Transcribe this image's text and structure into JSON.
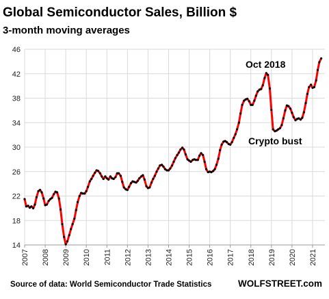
{
  "chart_data": {
    "type": "line",
    "title": "Global Semiconductor Sales, Billion $",
    "subtitle": "3-month moving averages",
    "ylim": [
      14,
      46
    ],
    "yticks": [
      14,
      18,
      22,
      26,
      30,
      34,
      38,
      42,
      46
    ],
    "xlim": [
      2007,
      2021.6
    ],
    "xticks": [
      "2007",
      "2008",
      "2009",
      "2010",
      "2011",
      "2012",
      "2013",
      "2014",
      "2015",
      "2016",
      "2017",
      "2018",
      "2019",
      "2020",
      "2021"
    ],
    "grid": true,
    "colors": {
      "line": "#ff0000",
      "markers": "#000000",
      "grid": "#d9d9d9"
    },
    "series": [
      {
        "points": [
          [
            2007.0,
            21.5
          ],
          [
            2007.08,
            20.3
          ],
          [
            2007.17,
            20.4
          ],
          [
            2007.25,
            20.1
          ],
          [
            2007.33,
            20.3
          ],
          [
            2007.42,
            20.0
          ],
          [
            2007.5,
            20.6
          ],
          [
            2007.58,
            21.8
          ],
          [
            2007.67,
            22.8
          ],
          [
            2007.75,
            23.0
          ],
          [
            2007.83,
            22.6
          ],
          [
            2007.92,
            21.6
          ],
          [
            2008.0,
            20.5
          ],
          [
            2008.08,
            20.6
          ],
          [
            2008.17,
            21.2
          ],
          [
            2008.25,
            21.5
          ],
          [
            2008.33,
            21.7
          ],
          [
            2008.42,
            22.3
          ],
          [
            2008.5,
            22.7
          ],
          [
            2008.58,
            22.6
          ],
          [
            2008.67,
            21.6
          ],
          [
            2008.75,
            19.8
          ],
          [
            2008.83,
            17.4
          ],
          [
            2008.92,
            15.3
          ],
          [
            2009.0,
            14.1
          ],
          [
            2009.08,
            14.6
          ],
          [
            2009.17,
            15.6
          ],
          [
            2009.25,
            16.6
          ],
          [
            2009.33,
            17.4
          ],
          [
            2009.42,
            18.3
          ],
          [
            2009.5,
            19.7
          ],
          [
            2009.58,
            21.0
          ],
          [
            2009.67,
            22.0
          ],
          [
            2009.75,
            22.5
          ],
          [
            2009.83,
            22.4
          ],
          [
            2009.92,
            22.4
          ],
          [
            2010.0,
            22.8
          ],
          [
            2010.08,
            23.5
          ],
          [
            2010.17,
            24.4
          ],
          [
            2010.25,
            24.8
          ],
          [
            2010.33,
            25.3
          ],
          [
            2010.42,
            25.8
          ],
          [
            2010.5,
            26.2
          ],
          [
            2010.58,
            26.1
          ],
          [
            2010.67,
            25.7
          ],
          [
            2010.75,
            25.2
          ],
          [
            2010.83,
            24.8
          ],
          [
            2010.92,
            25.2
          ],
          [
            2011.0,
            24.9
          ],
          [
            2011.08,
            24.7
          ],
          [
            2011.17,
            25.2
          ],
          [
            2011.25,
            24.9
          ],
          [
            2011.33,
            24.8
          ],
          [
            2011.42,
            25.1
          ],
          [
            2011.5,
            25.7
          ],
          [
            2011.58,
            25.7
          ],
          [
            2011.67,
            25.3
          ],
          [
            2011.75,
            24.3
          ],
          [
            2011.83,
            23.4
          ],
          [
            2011.92,
            23.1
          ],
          [
            2012.0,
            23.0
          ],
          [
            2012.08,
            23.5
          ],
          [
            2012.17,
            24.1
          ],
          [
            2012.25,
            24.4
          ],
          [
            2012.33,
            24.3
          ],
          [
            2012.42,
            24.2
          ],
          [
            2012.5,
            24.5
          ],
          [
            2012.58,
            24.9
          ],
          [
            2012.67,
            25.2
          ],
          [
            2012.75,
            25.4
          ],
          [
            2012.83,
            24.7
          ],
          [
            2012.92,
            23.6
          ],
          [
            2013.0,
            23.3
          ],
          [
            2013.08,
            23.4
          ],
          [
            2013.17,
            24.2
          ],
          [
            2013.25,
            24.8
          ],
          [
            2013.33,
            25.3
          ],
          [
            2013.42,
            26.0
          ],
          [
            2013.5,
            26.5
          ],
          [
            2013.58,
            27.0
          ],
          [
            2013.67,
            27.1
          ],
          [
            2013.75,
            26.8
          ],
          [
            2013.83,
            26.4
          ],
          [
            2013.92,
            26.2
          ],
          [
            2014.0,
            26.2
          ],
          [
            2014.08,
            26.5
          ],
          [
            2014.17,
            27.0
          ],
          [
            2014.25,
            27.6
          ],
          [
            2014.33,
            28.2
          ],
          [
            2014.42,
            28.7
          ],
          [
            2014.5,
            29.1
          ],
          [
            2014.58,
            29.6
          ],
          [
            2014.67,
            29.9
          ],
          [
            2014.75,
            29.6
          ],
          [
            2014.83,
            28.8
          ],
          [
            2014.92,
            28.0
          ],
          [
            2015.0,
            27.8
          ],
          [
            2015.08,
            27.6
          ],
          [
            2015.17,
            27.9
          ],
          [
            2015.25,
            28.0
          ],
          [
            2015.33,
            27.9
          ],
          [
            2015.42,
            27.9
          ],
          [
            2015.5,
            28.6
          ],
          [
            2015.58,
            29.0
          ],
          [
            2015.67,
            28.7
          ],
          [
            2015.75,
            27.6
          ],
          [
            2015.83,
            26.4
          ],
          [
            2015.92,
            25.9
          ],
          [
            2016.0,
            26.0
          ],
          [
            2016.08,
            25.9
          ],
          [
            2016.17,
            26.1
          ],
          [
            2016.25,
            26.4
          ],
          [
            2016.33,
            27.1
          ],
          [
            2016.42,
            28.1
          ],
          [
            2016.5,
            29.5
          ],
          [
            2016.58,
            30.4
          ],
          [
            2016.67,
            30.9
          ],
          [
            2016.75,
            31.0
          ],
          [
            2016.83,
            30.8
          ],
          [
            2016.92,
            30.5
          ],
          [
            2017.0,
            30.4
          ],
          [
            2017.08,
            30.8
          ],
          [
            2017.17,
            31.5
          ],
          [
            2017.25,
            32.1
          ],
          [
            2017.33,
            32.9
          ],
          [
            2017.42,
            34.0
          ],
          [
            2017.5,
            35.5
          ],
          [
            2017.58,
            36.9
          ],
          [
            2017.67,
            37.6
          ],
          [
            2017.75,
            37.8
          ],
          [
            2017.83,
            37.9
          ],
          [
            2017.92,
            37.5
          ],
          [
            2018.0,
            36.9
          ],
          [
            2018.08,
            36.9
          ],
          [
            2018.17,
            37.6
          ],
          [
            2018.25,
            38.4
          ],
          [
            2018.33,
            39.1
          ],
          [
            2018.42,
            39.4
          ],
          [
            2018.5,
            39.5
          ],
          [
            2018.58,
            40.1
          ],
          [
            2018.67,
            41.3
          ],
          [
            2018.75,
            42.1
          ],
          [
            2018.83,
            41.8
          ],
          [
            2018.92,
            39.6
          ],
          [
            2019.0,
            36.1
          ],
          [
            2019.08,
            32.9
          ],
          [
            2019.17,
            32.6
          ],
          [
            2019.25,
            32.7
          ],
          [
            2019.33,
            32.9
          ],
          [
            2019.42,
            33.1
          ],
          [
            2019.5,
            33.6
          ],
          [
            2019.58,
            34.7
          ],
          [
            2019.67,
            36.0
          ],
          [
            2019.75,
            36.8
          ],
          [
            2019.83,
            36.7
          ],
          [
            2019.92,
            36.3
          ],
          [
            2020.0,
            35.6
          ],
          [
            2020.08,
            34.9
          ],
          [
            2020.17,
            34.4
          ],
          [
            2020.25,
            34.6
          ],
          [
            2020.33,
            34.7
          ],
          [
            2020.42,
            34.5
          ],
          [
            2020.5,
            34.8
          ],
          [
            2020.58,
            35.7
          ],
          [
            2020.67,
            37.2
          ],
          [
            2020.75,
            38.7
          ],
          [
            2020.83,
            39.8
          ],
          [
            2020.92,
            40.2
          ],
          [
            2021.0,
            39.7
          ],
          [
            2021.08,
            39.8
          ],
          [
            2021.17,
            40.9
          ],
          [
            2021.25,
            42.6
          ],
          [
            2021.33,
            43.9
          ],
          [
            2021.42,
            44.5
          ]
        ]
      }
    ],
    "annotations": [
      {
        "text": "Oct 2018",
        "x": 2018.75,
        "y": 42.1
      },
      {
        "text": "Crypto bust",
        "x": 2019.17,
        "y": 32.6
      }
    ],
    "source": "Source of data: World Semiconductor Trade Statistics",
    "brand": "WOLFSTREET.com"
  }
}
